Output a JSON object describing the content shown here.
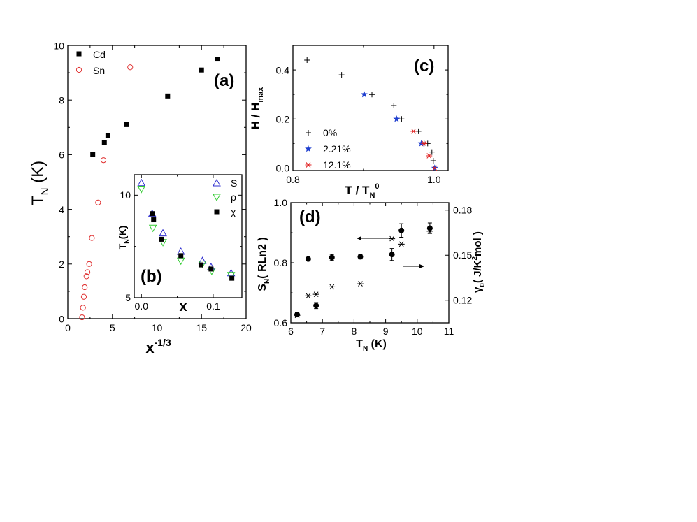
{
  "colors": {
    "cd": "#000000",
    "sn": "#e03030",
    "s": "#3030d0",
    "rho": "#33cc33",
    "chi": "#000000",
    "c0": "#000000",
    "c221": "#2040d0",
    "c121": "#e02020"
  },
  "chart_data": [
    {
      "id": "a",
      "type": "scatter",
      "panel_label": "(a)",
      "xlabel": {
        "base": "x",
        "sup": "-1/3"
      },
      "ylabel": {
        "base": "T",
        "sub": "N",
        "rest": " (K)"
      },
      "xlim": [
        0,
        20
      ],
      "ylim": [
        0,
        10
      ],
      "xticks": [
        "0",
        "5",
        "10",
        "15",
        "20"
      ],
      "yticks": [
        "0",
        "2",
        "4",
        "6",
        "8",
        "10"
      ],
      "legend": [
        "Cd",
        "Sn"
      ],
      "series": [
        {
          "name": "Cd",
          "marker": "filled-square",
          "x": [
            2.8,
            4.1,
            4.5,
            6.6,
            11.2,
            15.0,
            16.8
          ],
          "y": [
            6.0,
            6.45,
            6.7,
            7.1,
            8.15,
            9.1,
            9.5
          ]
        },
        {
          "name": "Sn",
          "marker": "open-circle",
          "x": [
            1.6,
            1.7,
            1.8,
            1.9,
            2.1,
            2.2,
            2.4,
            2.7,
            3.4,
            4.0,
            7.0
          ],
          "y": [
            0.05,
            0.4,
            0.8,
            1.15,
            1.55,
            1.7,
            2.0,
            2.95,
            4.25,
            5.8,
            9.2
          ]
        }
      ]
    },
    {
      "id": "b",
      "type": "scatter",
      "panel_label": "(b)",
      "xlabel": {
        "base": "x"
      },
      "ylabel": {
        "base": "T",
        "sub": "N",
        "rest": "(K)"
      },
      "xlim": [
        -0.01,
        0.14
      ],
      "ylim": [
        5,
        11
      ],
      "xticks": [
        "0.0",
        "0.1"
      ],
      "yticks": [
        "5",
        "10"
      ],
      "legend": [
        "S",
        "ρ",
        "χ"
      ],
      "series": [
        {
          "name": "S",
          "marker": "open-triangle-up",
          "x": [
            0.0,
            0.015,
            0.03,
            0.055,
            0.085,
            0.097,
            0.125
          ],
          "y": [
            10.6,
            9.1,
            8.15,
            7.25,
            6.8,
            6.5,
            6.2
          ]
        },
        {
          "name": "ρ",
          "marker": "open-triangle-down",
          "x": [
            0.0,
            0.016,
            0.03,
            0.055,
            0.085,
            0.098,
            0.125
          ],
          "y": [
            10.3,
            8.4,
            7.7,
            6.8,
            6.65,
            6.3,
            6.1
          ]
        },
        {
          "name": "χ",
          "marker": "filled-square",
          "x": [
            0.015,
            0.017,
            0.028,
            0.055,
            0.083,
            0.097,
            0.126
          ],
          "y": [
            9.1,
            8.8,
            7.85,
            7.05,
            6.6,
            6.4,
            5.95
          ]
        }
      ]
    },
    {
      "id": "c",
      "type": "scatter",
      "panel_label": "(c)",
      "xlabel": {
        "base": "T / T",
        "sub": "N",
        "sup": "0"
      },
      "ylabel": {
        "base": "H / H",
        "sub": "max"
      },
      "xlim": [
        0.8,
        1.02
      ],
      "ylim": [
        -0.01,
        0.5
      ],
      "xticks": [
        "0.8",
        "1.0"
      ],
      "yticks": [
        "0.0",
        "0.2",
        "0.4"
      ],
      "legend": [
        "0%",
        "2.21%",
        "12.1%"
      ],
      "series": [
        {
          "name": "0%",
          "marker": "plus",
          "x": [
            0.82,
            0.869,
            0.912,
            0.943,
            0.954,
            0.978,
            0.986,
            0.991,
            0.997,
            0.999
          ],
          "y": [
            0.44,
            0.38,
            0.3,
            0.255,
            0.2,
            0.15,
            0.1,
            0.1,
            0.065,
            0.03
          ]
        },
        {
          "name": "2.21%",
          "marker": "filled-star",
          "x": [
            0.901,
            0.947,
            0.982,
            1.001
          ],
          "y": [
            0.3,
            0.2,
            0.1,
            0.0
          ]
        },
        {
          "name": "12.1%",
          "marker": "asterisk",
          "x": [
            0.971,
            0.986,
            0.993,
            1.001
          ],
          "y": [
            0.15,
            0.1,
            0.05,
            0.0
          ]
        }
      ]
    },
    {
      "id": "d",
      "type": "scatter",
      "panel_label": "(d)",
      "xlabel": {
        "base": "T",
        "sub": "N",
        "rest": " (K)"
      },
      "ylabel_left": {
        "base": "S",
        "sub": "N",
        "rest": "( RLn2 )"
      },
      "ylabel_right": {
        "base": "γ",
        "sub": "0",
        "rest": "( J/K",
        "sup": "2",
        "tail": "mol )"
      },
      "xlim": [
        6,
        11
      ],
      "ylim_left": [
        0.6,
        1.0
      ],
      "ylim_right": [
        0.105,
        0.185
      ],
      "xticks": [
        "6",
        "7",
        "8",
        "9",
        "10",
        "11"
      ],
      "yticks_left": [
        "0.6",
        "0.8",
        "1.0"
      ],
      "yticks_right": [
        "0.12",
        "0.15",
        "0.18"
      ],
      "series": [
        {
          "name": "S_N",
          "axis": "left",
          "marker": "asterisk",
          "x": [
            6.2,
            6.55,
            6.8,
            7.3,
            8.2,
            9.2,
            9.5,
            10.4
          ],
          "y": [
            0.625,
            0.69,
            0.695,
            0.72,
            0.73,
            0.88,
            0.862,
            0.905
          ]
        },
        {
          "name": "gamma_0",
          "axis": "right",
          "marker": "filled-circle",
          "x": [
            6.2,
            6.55,
            6.8,
            7.3,
            8.2,
            9.2,
            9.5,
            10.4
          ],
          "y": [
            0.1105,
            0.1475,
            0.1165,
            0.1485,
            0.149,
            0.1505,
            0.1665,
            0.168
          ],
          "err": [
            0.0015,
            0.0,
            0.002,
            0.002,
            0.0015,
            0.004,
            0.0045,
            0.0035
          ]
        }
      ]
    }
  ]
}
